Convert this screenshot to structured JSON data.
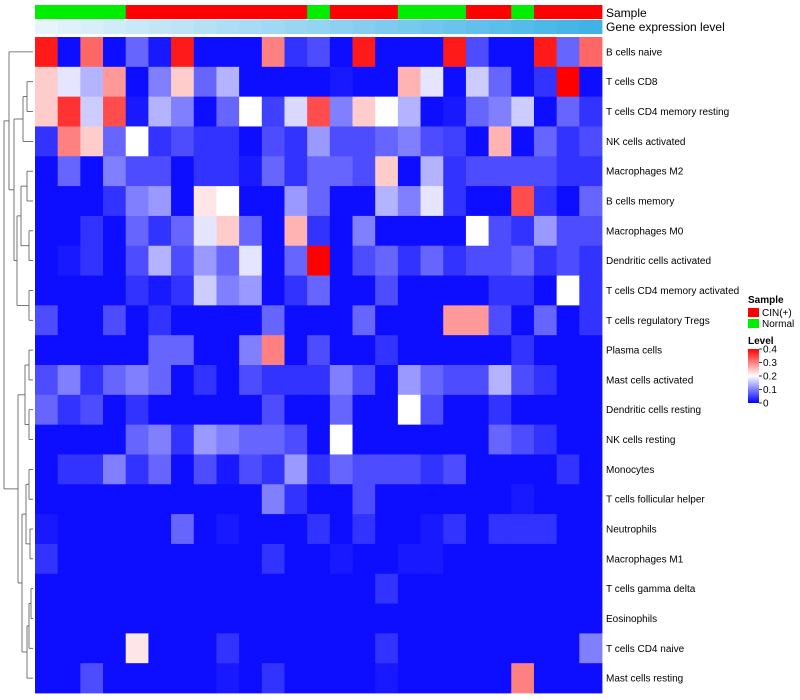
{
  "chart_data": {
    "type": "heatmap",
    "title": "",
    "annotations": {
      "sample": {
        "label": "Sample",
        "values": [
          "Normal",
          "Normal",
          "Normal",
          "Normal",
          "CIN(+)",
          "CIN(+)",
          "CIN(+)",
          "CIN(+)",
          "CIN(+)",
          "CIN(+)",
          "CIN(+)",
          "CIN(+)",
          "Normal",
          "CIN(+)",
          "CIN(+)",
          "CIN(+)",
          "Normal",
          "Normal",
          "Normal",
          "CIN(+)",
          "CIN(+)",
          "Normal",
          "CIN(+)",
          "CIN(+)",
          "CIN(+)"
        ]
      },
      "expression": {
        "label": "Gene expression level",
        "values": [
          0.02,
          0.04,
          0.06,
          0.08,
          0.1,
          0.12,
          0.14,
          0.16,
          0.18,
          0.2,
          0.22,
          0.24,
          0.26,
          0.28,
          0.3,
          0.32,
          0.34,
          0.36,
          0.38,
          0.4,
          0.42,
          0.44,
          0.46,
          0.48,
          0.5
        ]
      }
    },
    "rows": [
      "B cells naive",
      "T cells CD8",
      "T cells CD4 memory resting",
      "NK cells activated",
      "Macrophages M2",
      "B cells memory",
      "Macrophages M0",
      "Dendritic cells activated",
      "T cells CD4 memory activated",
      "T cells regulatory  Tregs",
      "Plasma cells",
      "Mast cells activated",
      "Dendritic cells resting",
      "NK cells resting",
      "Monocytes",
      "T cells follicular helper",
      "Neutrophils",
      "Macrophages M1",
      "T cells gamma delta",
      "Eosinophils",
      "T cells CD4 naive",
      "Mast cells resting"
    ],
    "values": [
      [
        0.38,
        0.01,
        0.32,
        0.01,
        0.08,
        0.02,
        0.38,
        0.01,
        0.01,
        0.01,
        0.3,
        0.04,
        0.06,
        0.01,
        0.38,
        0.01,
        0.01,
        0.01,
        0.38,
        0.06,
        0.01,
        0.01,
        0.38,
        0.08,
        0.32
      ],
      [
        0.24,
        0.18,
        0.14,
        0.28,
        0.01,
        0.1,
        0.24,
        0.08,
        0.14,
        0.01,
        0.01,
        0.01,
        0.01,
        0.02,
        0.01,
        0.01,
        0.26,
        0.18,
        0.01,
        0.16,
        0.08,
        0.01,
        0.04,
        0.4,
        0.01
      ],
      [
        0.24,
        0.36,
        0.16,
        0.34,
        0.02,
        0.14,
        0.1,
        0.01,
        0.08,
        0.2,
        0.05,
        0.17,
        0.34,
        0.1,
        0.24,
        0.2,
        0.14,
        0.01,
        0.02,
        0.08,
        0.1,
        0.16,
        0.01,
        0.08,
        0.04
      ],
      [
        0.04,
        0.3,
        0.24,
        0.08,
        0.2,
        0.04,
        0.06,
        0.04,
        0.04,
        0.01,
        0.06,
        0.04,
        0.12,
        0.06,
        0.06,
        0.08,
        0.1,
        0.06,
        0.05,
        0.01,
        0.26,
        0.01,
        0.08,
        0.04,
        0.06
      ],
      [
        0.01,
        0.08,
        0.01,
        0.1,
        0.06,
        0.06,
        0.01,
        0.04,
        0.04,
        0.02,
        0.08,
        0.04,
        0.08,
        0.08,
        0.06,
        0.24,
        0.01,
        0.14,
        0.04,
        0.06,
        0.06,
        0.06,
        0.06,
        0.04,
        0.04
      ],
      [
        0.01,
        0.01,
        0.01,
        0.04,
        0.1,
        0.12,
        0.01,
        0.22,
        0.2,
        0.01,
        0.01,
        0.12,
        0.08,
        0.01,
        0.01,
        0.14,
        0.1,
        0.18,
        0.04,
        0.01,
        0.01,
        0.34,
        0.04,
        0.01,
        0.08
      ],
      [
        0.01,
        0.01,
        0.04,
        0.01,
        0.08,
        0.04,
        0.08,
        0.18,
        0.24,
        0.08,
        0.01,
        0.26,
        0.04,
        0.01,
        0.1,
        0.01,
        0.01,
        0.01,
        0.01,
        0.2,
        0.06,
        0.04,
        0.12,
        0.06,
        0.06
      ],
      [
        0.01,
        0.02,
        0.04,
        0.01,
        0.06,
        0.14,
        0.06,
        0.12,
        0.08,
        0.18,
        0.01,
        0.08,
        0.4,
        0.01,
        0.06,
        0.08,
        0.04,
        0.08,
        0.04,
        0.06,
        0.06,
        0.08,
        0.04,
        0.06,
        0.04
      ],
      [
        0.01,
        0.01,
        0.01,
        0.01,
        0.04,
        0.02,
        0.04,
        0.16,
        0.1,
        0.12,
        0.01,
        0.04,
        0.08,
        0.01,
        0.01,
        0.06,
        0.01,
        0.01,
        0.01,
        0.01,
        0.04,
        0.04,
        0.01,
        0.2,
        0.04
      ],
      [
        0.06,
        0.01,
        0.01,
        0.06,
        0.01,
        0.04,
        0.01,
        0.01,
        0.01,
        0.01,
        0.08,
        0.01,
        0.01,
        0.01,
        0.08,
        0.01,
        0.01,
        0.01,
        0.28,
        0.28,
        0.06,
        0.01,
        0.08,
        0.01,
        0.04
      ],
      [
        0.01,
        0.01,
        0.01,
        0.01,
        0.01,
        0.08,
        0.08,
        0.01,
        0.01,
        0.1,
        0.3,
        0.01,
        0.06,
        0.01,
        0.01,
        0.04,
        0.01,
        0.01,
        0.01,
        0.01,
        0.01,
        0.04,
        0.01,
        0.01,
        0.01
      ],
      [
        0.06,
        0.1,
        0.04,
        0.08,
        0.1,
        0.08,
        0.01,
        0.04,
        0.01,
        0.06,
        0.04,
        0.04,
        0.04,
        0.1,
        0.06,
        0.01,
        0.12,
        0.08,
        0.06,
        0.06,
        0.14,
        0.06,
        0.04,
        0.01,
        0.01
      ],
      [
        0.08,
        0.04,
        0.06,
        0.01,
        0.04,
        0.01,
        0.01,
        0.01,
        0.01,
        0.01,
        0.06,
        0.01,
        0.01,
        0.08,
        0.01,
        0.01,
        0.2,
        0.06,
        0.01,
        0.01,
        0.04,
        0.01,
        0.01,
        0.01,
        0.01
      ],
      [
        0.01,
        0.01,
        0.01,
        0.01,
        0.08,
        0.1,
        0.04,
        0.12,
        0.1,
        0.08,
        0.08,
        0.06,
        0.01,
        0.2,
        0.01,
        0.01,
        0.01,
        0.01,
        0.01,
        0.01,
        0.08,
        0.06,
        0.04,
        0.01,
        0.01
      ],
      [
        0.01,
        0.04,
        0.04,
        0.1,
        0.04,
        0.08,
        0.01,
        0.06,
        0.02,
        0.06,
        0.04,
        0.12,
        0.04,
        0.08,
        0.06,
        0.06,
        0.06,
        0.04,
        0.06,
        0.01,
        0.01,
        0.01,
        0.01,
        0.04,
        0.01
      ],
      [
        0.01,
        0.01,
        0.01,
        0.01,
        0.01,
        0.01,
        0.01,
        0.01,
        0.01,
        0.01,
        0.1,
        0.04,
        0.01,
        0.01,
        0.06,
        0.01,
        0.01,
        0.01,
        0.01,
        0.01,
        0.01,
        0.02,
        0.01,
        0.01,
        0.01
      ],
      [
        0.02,
        0.01,
        0.01,
        0.01,
        0.01,
        0.01,
        0.08,
        0.01,
        0.02,
        0.01,
        0.01,
        0.01,
        0.04,
        0.01,
        0.04,
        0.01,
        0.01,
        0.02,
        0.04,
        0.01,
        0.04,
        0.04,
        0.04,
        0.01,
        0.01
      ],
      [
        0.04,
        0.01,
        0.01,
        0.01,
        0.01,
        0.01,
        0.01,
        0.01,
        0.01,
        0.01,
        0.04,
        0.01,
        0.01,
        0.02,
        0.01,
        0.01,
        0.02,
        0.02,
        0.01,
        0.01,
        0.01,
        0.01,
        0.01,
        0.01,
        0.01
      ],
      [
        0.01,
        0.01,
        0.01,
        0.01,
        0.01,
        0.01,
        0.01,
        0.01,
        0.01,
        0.01,
        0.01,
        0.01,
        0.01,
        0.01,
        0.01,
        0.04,
        0.01,
        0.01,
        0.01,
        0.01,
        0.01,
        0.01,
        0.01,
        0.01,
        0.01
      ],
      [
        0.01,
        0.01,
        0.01,
        0.01,
        0.01,
        0.01,
        0.01,
        0.01,
        0.01,
        0.01,
        0.01,
        0.01,
        0.01,
        0.01,
        0.01,
        0.01,
        0.01,
        0.01,
        0.01,
        0.01,
        0.01,
        0.01,
        0.01,
        0.01,
        0.01
      ],
      [
        0.01,
        0.01,
        0.01,
        0.01,
        0.22,
        0.01,
        0.01,
        0.01,
        0.04,
        0.01,
        0.01,
        0.01,
        0.01,
        0.01,
        0.01,
        0.04,
        0.01,
        0.01,
        0.01,
        0.01,
        0.01,
        0.01,
        0.01,
        0.01,
        0.1
      ],
      [
        0.01,
        0.01,
        0.06,
        0.01,
        0.01,
        0.01,
        0.01,
        0.01,
        0.02,
        0.01,
        0.04,
        0.01,
        0.01,
        0.01,
        0.01,
        0.02,
        0.01,
        0.01,
        0.01,
        0.01,
        0.01,
        0.3,
        0.01,
        0.01,
        0.01
      ]
    ],
    "legend": {
      "sample_title": "Sample",
      "sample_entries": [
        {
          "label": "CIN(+)",
          "color": "#ff0000"
        },
        {
          "label": "Normal",
          "color": "#00ee00"
        }
      ],
      "level_title": "Level",
      "level_ticks": [
        "0.4",
        "0.3",
        "0.2",
        "0.1",
        "0"
      ],
      "level_tick_values": [
        0.4,
        0.3,
        0.2,
        0.1,
        0
      ]
    },
    "color_scale": {
      "low": "#0000ff",
      "mid": "#ffffff",
      "high": "#ff0000",
      "min": 0,
      "mid_value": 0.2,
      "max": 0.4
    },
    "annotation_colors": {
      "light": "#e6f4fb",
      "dark": "#3fb3e8"
    }
  }
}
